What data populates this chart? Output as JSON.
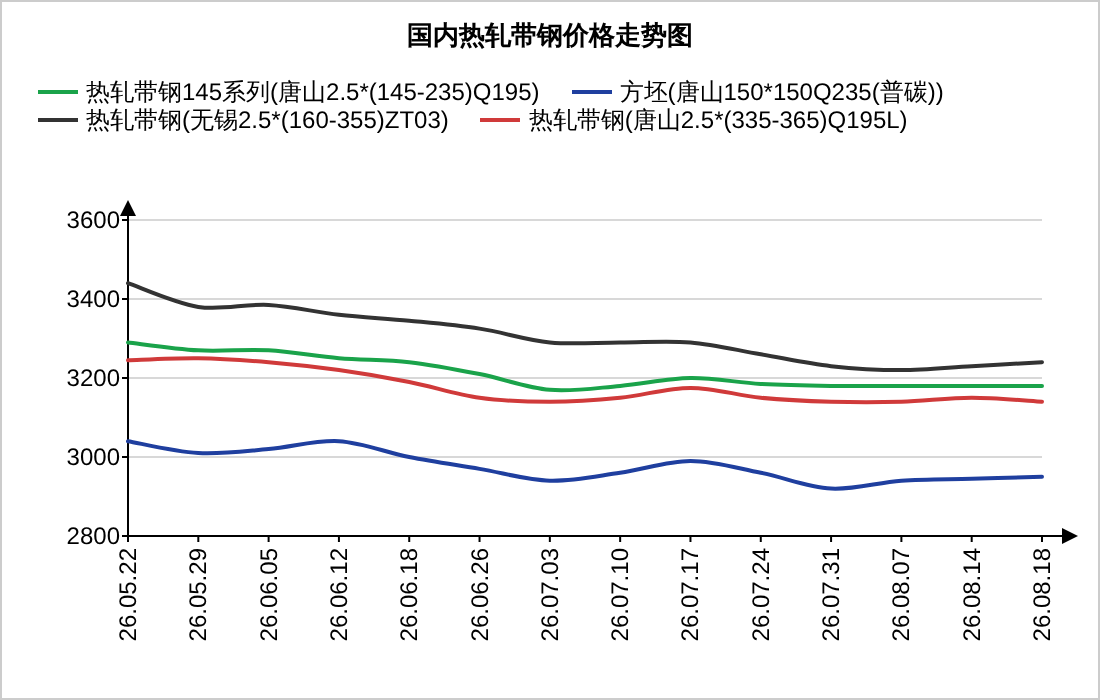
{
  "chart_data": {
    "type": "line",
    "title": "国内热轧带钢价格走势图",
    "categories": [
      "26.05.22",
      "26.05.29",
      "26.06.05",
      "26.06.12",
      "26.06.18",
      "26.06.26",
      "26.07.03",
      "26.07.10",
      "26.07.17",
      "26.07.24",
      "26.07.31",
      "26.08.07",
      "26.08.14",
      "26.08.18"
    ],
    "series": [
      {
        "name": "热轧带钢145系列(唐山2.5*(145-235)Q195)",
        "color": "#1aa34a",
        "values": [
          3290,
          3270,
          3270,
          3250,
          3240,
          3210,
          3170,
          3180,
          3200,
          3185,
          3180,
          3180,
          3180,
          3180
        ]
      },
      {
        "name": "方坯(唐山150*150Q235(普碳))",
        "color": "#1f3f9f",
        "values": [
          3040,
          3010,
          3020,
          3040,
          3000,
          2970,
          2940,
          2960,
          2990,
          2960,
          2920,
          2940,
          2945,
          2950
        ]
      },
      {
        "name": "热轧带钢(无锡2.5*(160-355)ZT03)",
        "color": "#333333",
        "values": [
          3440,
          3380,
          3385,
          3360,
          3345,
          3325,
          3290,
          3290,
          3290,
          3260,
          3230,
          3220,
          3230,
          3240
        ]
      },
      {
        "name": "热轧带钢(唐山2.5*(335-365)Q195L)",
        "color": "#d03a3a",
        "values": [
          3245,
          3250,
          3240,
          3220,
          3190,
          3150,
          3140,
          3150,
          3175,
          3150,
          3140,
          3140,
          3150,
          3140
        ]
      }
    ],
    "ylim": [
      2800,
      3600
    ],
    "yticks": [
      2800,
      3000,
      3200,
      3400,
      3600
    ],
    "grid": "y",
    "legend": "top"
  }
}
